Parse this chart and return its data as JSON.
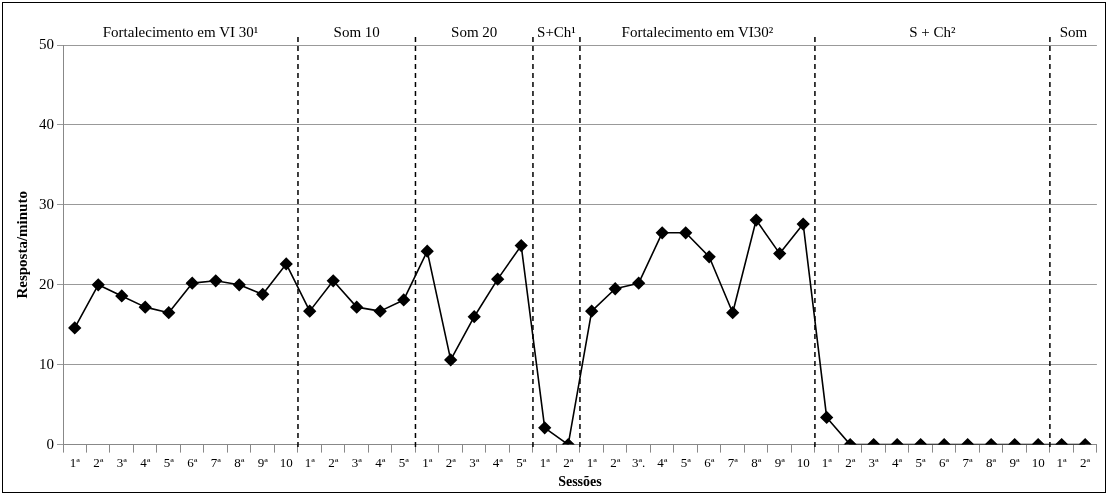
{
  "chart_data": {
    "type": "line",
    "xlabel": "Sessões",
    "ylabel": "Resposta/minuto",
    "categories": [
      "1ª",
      "2ª",
      "3ª",
      "4ª",
      "5ª",
      "6ª",
      "7ª",
      "8ª",
      "9ª",
      "10",
      "1ª",
      "2ª",
      "3ª",
      "4ª",
      "5ª",
      "1ª",
      "2ª",
      "3ª",
      "4ª",
      "5ª",
      "1ª",
      "2ª",
      "1ª",
      "2ª",
      "3ª.",
      "4ª",
      "5ª",
      "6ª",
      "7ª",
      "8ª",
      "9ª",
      "10",
      "1ª",
      "2ª",
      "3ª",
      "4ª",
      "5ª",
      "6ª",
      "7ª",
      "8ª",
      "9ª",
      "10",
      "1ª",
      "2ª"
    ],
    "series": [
      {
        "color": "#000000",
        "values": [
          14.6,
          20,
          18.6,
          17.2,
          16.5,
          20.2,
          20.5,
          20,
          18.8,
          22.6,
          16.7,
          20.5,
          17.2,
          16.7,
          18.1,
          24.2,
          10.6,
          16,
          20.7,
          24.9,
          2.1,
          0,
          16.7,
          19.5,
          20.2,
          26.5,
          26.5,
          23.5,
          16.5,
          28.1,
          23.9,
          27.6,
          3.4,
          0,
          0,
          0,
          0,
          0,
          0,
          0,
          0,
          0,
          0,
          0
        ]
      }
    ],
    "ylim": [
      0,
      50
    ],
    "yticks": [
      0,
      10,
      20,
      30,
      40,
      50
    ],
    "grid": "y",
    "legend": false,
    "marker": "diamond",
    "line_style": "solid",
    "annotations": [
      "Fortalecimento em VI 30¹",
      "Som 10",
      "Som 20",
      "S+Ch¹",
      "Fortalecimento em VI30²",
      "S + Ch²",
      "Som"
    ]
  }
}
